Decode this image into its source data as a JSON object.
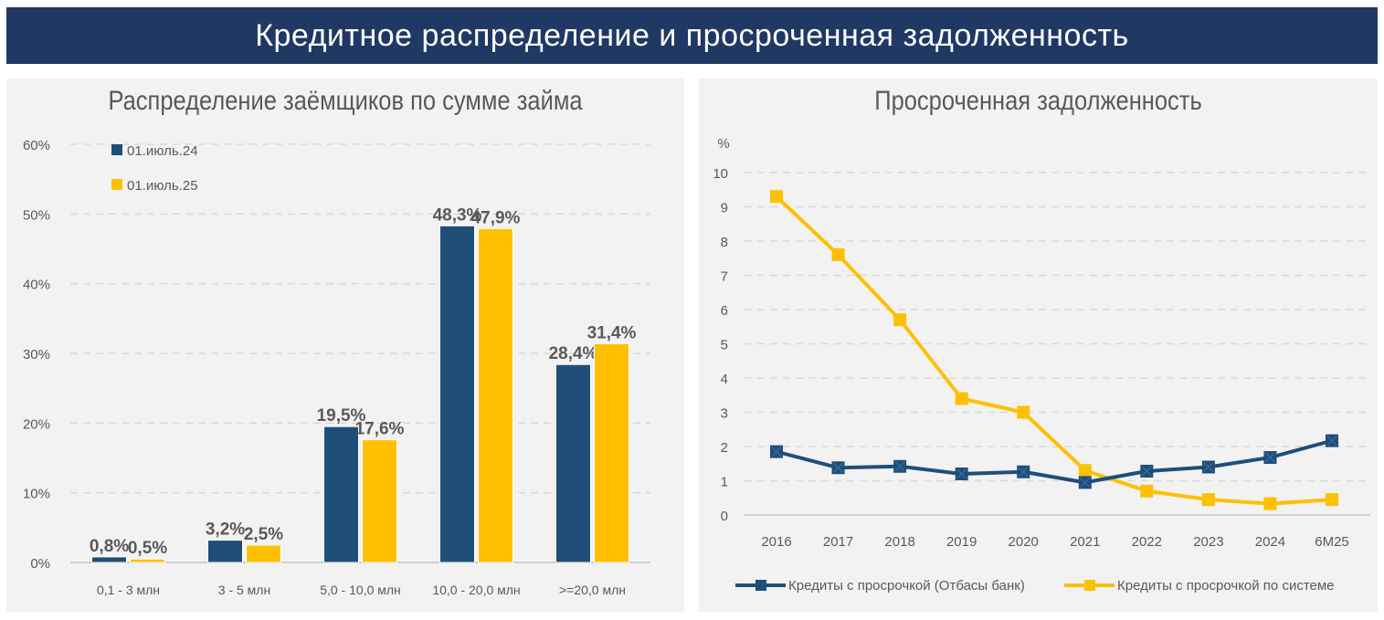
{
  "header": {
    "title": "Кредитное распределение и просроченная задолженность"
  },
  "chart_data": [
    {
      "type": "bar",
      "title": "Распределение заёмщиков по сумме займа",
      "categories": [
        "0,1 - 3 млн",
        "3 - 5 млн",
        "5,0 - 10,0 млн",
        "10,0 - 20,0 млн",
        ">=20,0 млн"
      ],
      "series": [
        {
          "name": "01.июль.24",
          "color": "#1f4e79",
          "values": [
            0.8,
            3.2,
            19.5,
            48.3,
            28.4
          ],
          "labels": [
            "0,8%",
            "3,2%",
            "19,5%",
            "48,3%",
            "28,4%"
          ]
        },
        {
          "name": "01.июль.25",
          "color": "#ffc000",
          "values": [
            0.5,
            2.5,
            17.6,
            47.9,
            31.4
          ],
          "labels": [
            "0,5%",
            "2,5%",
            "17,6%",
            "47,9%",
            "31,4%"
          ]
        }
      ],
      "ylim": [
        0,
        60
      ],
      "yticks": [
        "0%",
        "10%",
        "20%",
        "30%",
        "40%",
        "50%",
        "60%"
      ],
      "grid": true,
      "legend": "top-left"
    },
    {
      "type": "line",
      "title": "Просроченная задолженность",
      "ylabel": "%",
      "categories": [
        "2016",
        "2017",
        "2018",
        "2019",
        "2020",
        "2021",
        "2022",
        "2023",
        "2024",
        "6M25"
      ],
      "series": [
        {
          "name": "Кредиты с просрочкой (Отбасы банк)",
          "color": "#1f4e79",
          "values": [
            1.85,
            1.38,
            1.42,
            1.2,
            1.26,
            0.95,
            1.28,
            1.4,
            1.68,
            2.17
          ]
        },
        {
          "name": "Кредиты с просрочкой по системе",
          "color": "#ffc000",
          "values": [
            9.3,
            7.6,
            5.7,
            3.4,
            3.0,
            1.3,
            0.7,
            0.45,
            0.33,
            0.45
          ]
        }
      ],
      "ylim": [
        0,
        10
      ],
      "yticks": [
        "0",
        "1",
        "2",
        "3",
        "4",
        "5",
        "6",
        "7",
        "8",
        "9",
        "10"
      ],
      "grid": true,
      "legend": "bottom"
    }
  ]
}
